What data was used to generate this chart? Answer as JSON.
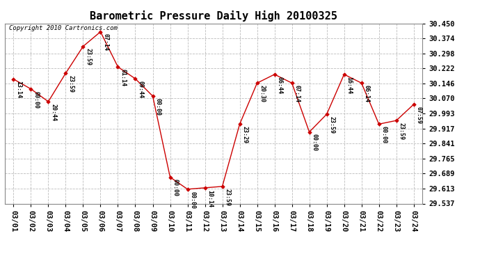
{
  "title": "Barometric Pressure Daily High 20100325",
  "copyright": "Copyright 2010 Cartronics.com",
  "x_labels": [
    "03/01",
    "03/02",
    "03/03",
    "03/04",
    "03/05",
    "03/06",
    "03/07",
    "03/08",
    "03/09",
    "03/10",
    "03/11",
    "03/12",
    "03/13",
    "03/14",
    "03/15",
    "03/16",
    "03/17",
    "03/18",
    "03/19",
    "03/20",
    "03/21",
    "03/22",
    "03/23",
    "03/24"
  ],
  "points": [
    {
      "date": "03/01",
      "time": "13:14",
      "value": 30.168
    },
    {
      "date": "03/02",
      "time": "00:00",
      "value": 30.118
    },
    {
      "date": "03/03",
      "time": "20:44",
      "value": 30.054
    },
    {
      "date": "03/04",
      "time": "23:59",
      "value": 30.198
    },
    {
      "date": "03/05",
      "time": "23:59",
      "value": 30.334
    },
    {
      "date": "03/06",
      "time": "07:14",
      "value": 30.408
    },
    {
      "date": "03/07",
      "time": "01:14",
      "value": 30.23
    },
    {
      "date": "03/08",
      "time": "09:44",
      "value": 30.17
    },
    {
      "date": "03/09",
      "time": "00:00",
      "value": 30.082
    },
    {
      "date": "03/10",
      "time": "00:00",
      "value": 29.671
    },
    {
      "date": "03/11",
      "time": "00:00",
      "value": 29.61
    },
    {
      "date": "03/12",
      "time": "10:14",
      "value": 29.617
    },
    {
      "date": "03/13",
      "time": "23:59",
      "value": 29.624
    },
    {
      "date": "03/14",
      "time": "23:29",
      "value": 29.94
    },
    {
      "date": "03/15",
      "time": "20:30",
      "value": 30.148
    },
    {
      "date": "03/16",
      "time": "06:44",
      "value": 30.192
    },
    {
      "date": "03/17",
      "time": "07:14",
      "value": 30.148
    },
    {
      "date": "03/18",
      "time": "00:00",
      "value": 29.9
    },
    {
      "date": "03/19",
      "time": "23:59",
      "value": 29.99
    },
    {
      "date": "03/20",
      "time": "16:44",
      "value": 30.192
    },
    {
      "date": "03/21",
      "time": "06:14",
      "value": 30.148
    },
    {
      "date": "03/22",
      "time": "00:00",
      "value": 29.94
    },
    {
      "date": "03/23",
      "time": "23:59",
      "value": 29.958
    },
    {
      "date": "03/24",
      "time": "07:59",
      "value": 30.04
    }
  ],
  "y_ticks": [
    29.537,
    29.613,
    29.689,
    29.765,
    29.841,
    29.917,
    29.993,
    30.07,
    30.146,
    30.222,
    30.298,
    30.374,
    30.45
  ],
  "ylim_min": 29.537,
  "ylim_max": 30.45,
  "line_color": "#cc0000",
  "marker_color": "#cc0000",
  "bg_color": "#ffffff",
  "plot_bg_color": "#ffffff",
  "grid_color": "#bbbbbb",
  "title_fontsize": 11,
  "copyright_fontsize": 6.5,
  "label_fontsize": 6,
  "tick_fontsize": 7.5
}
